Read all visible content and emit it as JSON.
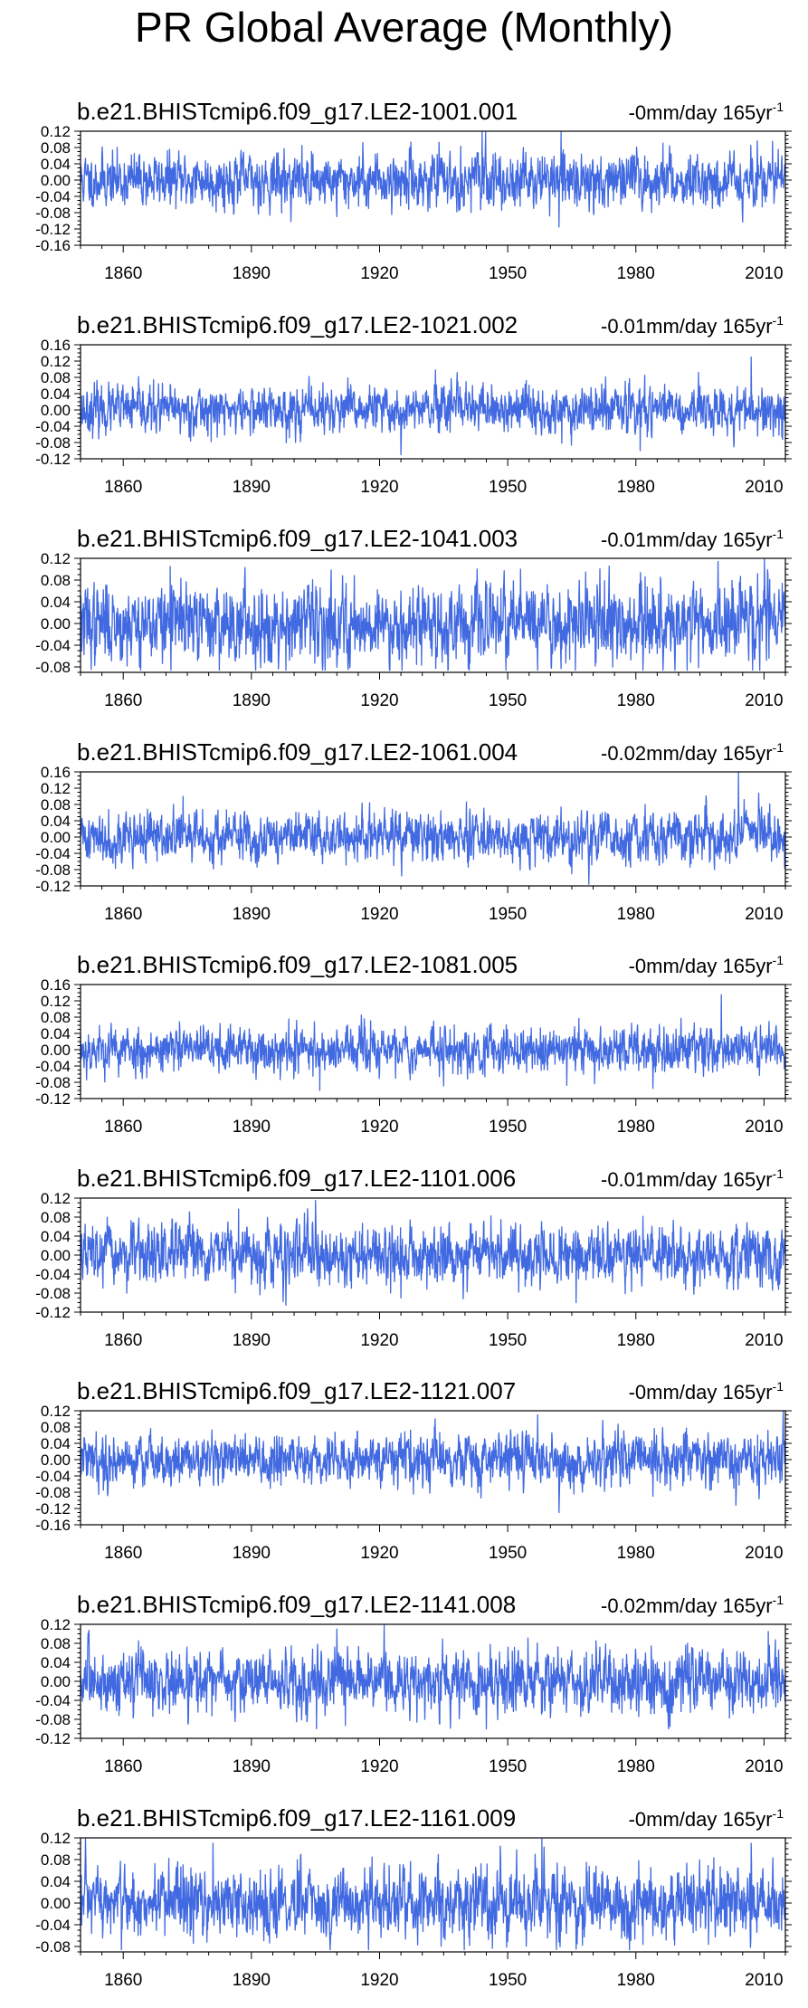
{
  "title": "PR Global Average (Monthly)",
  "trend_unit": "mm/day 165yr",
  "trend_exponent": "-1",
  "chart_data": [
    {
      "type": "line",
      "title": "b.e21.BHISTcmip6.f09_g17.LE2-1001.001",
      "trend": "-0",
      "xlim": [
        1850,
        2015
      ],
      "ylim": [
        -0.16,
        0.12
      ],
      "xticks": [
        1860,
        1890,
        1920,
        1950,
        1980,
        2010
      ],
      "xtick_labels": [
        "1860",
        "1890",
        "1920",
        "1950",
        "1980",
        "2010"
      ],
      "yticks": [
        -0.16,
        -0.12,
        -0.08,
        -0.04,
        0.0,
        0.04,
        0.08,
        0.12
      ],
      "ytick_labels": [
        "-0.16",
        "-0.12",
        "-0.08",
        "-0.04",
        "0.00",
        "0.04",
        "0.08",
        "0.12"
      ],
      "series": [
        {
          "color": "#4169e1",
          "start_year": 1850,
          "months": 1980,
          "amplitude": 0.032,
          "seed": 11,
          "features": [
            {
              "year": 1944,
              "value": 0.12
            },
            {
              "year": 1962,
              "value": -0.115
            },
            {
              "year": 1910,
              "value": -0.09
            },
            {
              "year": 2012,
              "value": 0.095
            }
          ]
        }
      ]
    },
    {
      "type": "line",
      "title": "b.e21.BHISTcmip6.f09_g17.LE2-1021.002",
      "trend": "-0.01",
      "xlim": [
        1850,
        2015
      ],
      "ylim": [
        -0.12,
        0.16
      ],
      "xticks": [
        1860,
        1890,
        1920,
        1950,
        1980,
        2010
      ],
      "xtick_labels": [
        "1860",
        "1890",
        "1920",
        "1950",
        "1980",
        "2010"
      ],
      "yticks": [
        -0.12,
        -0.08,
        -0.04,
        0.0,
        0.04,
        0.08,
        0.12,
        0.16
      ],
      "ytick_labels": [
        "-0.12",
        "-0.08",
        "-0.04",
        "0.00",
        "0.04",
        "0.08",
        "0.12",
        "0.16"
      ],
      "series": [
        {
          "color": "#4169e1",
          "start_year": 1850,
          "months": 1980,
          "amplitude": 0.028,
          "seed": 23,
          "features": [
            {
              "year": 2007,
              "value": 0.13
            },
            {
              "year": 1925,
              "value": -0.11
            },
            {
              "year": 1981,
              "value": -0.1
            }
          ]
        }
      ]
    },
    {
      "type": "line",
      "title": "b.e21.BHISTcmip6.f09_g17.LE2-1041.003",
      "trend": "-0.01",
      "xlim": [
        1850,
        2015
      ],
      "ylim": [
        -0.09,
        0.12
      ],
      "xticks": [
        1860,
        1890,
        1920,
        1950,
        1980,
        2010
      ],
      "xtick_labels": [
        "1860",
        "1890",
        "1920",
        "1950",
        "1980",
        "2010"
      ],
      "yticks": [
        -0.08,
        -0.04,
        0.0,
        0.04,
        0.08,
        0.12
      ],
      "ytick_labels": [
        "-0.08",
        "-0.04",
        "0.00",
        "0.04",
        "0.08",
        "0.12"
      ],
      "series": [
        {
          "color": "#4169e1",
          "start_year": 1850,
          "months": 1980,
          "amplitude": 0.035,
          "seed": 37,
          "features": [
            {
              "year": 1871,
              "value": 0.105
            },
            {
              "year": 1891,
              "value": -0.09
            },
            {
              "year": 1936,
              "value": -0.09
            },
            {
              "year": 1953,
              "value": 0.1
            }
          ]
        }
      ]
    },
    {
      "type": "line",
      "title": "b.e21.BHISTcmip6.f09_g17.LE2-1061.004",
      "trend": "-0.02",
      "xlim": [
        1850,
        2015
      ],
      "ylim": [
        -0.12,
        0.16
      ],
      "xticks": [
        1860,
        1890,
        1920,
        1950,
        1980,
        2010
      ],
      "xtick_labels": [
        "1860",
        "1890",
        "1920",
        "1950",
        "1980",
        "2010"
      ],
      "yticks": [
        -0.12,
        -0.08,
        -0.04,
        0.0,
        0.04,
        0.08,
        0.12,
        0.16
      ],
      "ytick_labels": [
        "-0.12",
        "-0.08",
        "-0.04",
        "0.00",
        "0.04",
        "0.08",
        "0.12",
        "0.16"
      ],
      "series": [
        {
          "color": "#4169e1",
          "start_year": 1850,
          "months": 1980,
          "amplitude": 0.03,
          "seed": 41,
          "features": [
            {
              "year": 2004,
              "value": 0.16
            },
            {
              "year": 1969,
              "value": -0.12
            },
            {
              "year": 1965,
              "value": -0.09
            },
            {
              "year": 1874,
              "value": 0.1
            }
          ]
        }
      ]
    },
    {
      "type": "line",
      "title": "b.e21.BHISTcmip6.f09_g17.LE2-1081.005",
      "trend": "-0",
      "xlim": [
        1850,
        2015
      ],
      "ylim": [
        -0.12,
        0.16
      ],
      "xticks": [
        1860,
        1890,
        1920,
        1950,
        1980,
        2010
      ],
      "xtick_labels": [
        "1860",
        "1890",
        "1920",
        "1950",
        "1980",
        "2010"
      ],
      "yticks": [
        -0.12,
        -0.08,
        -0.04,
        0.0,
        0.04,
        0.08,
        0.12,
        0.16
      ],
      "ytick_labels": [
        "-0.12",
        "-0.08",
        "-0.04",
        "0.00",
        "0.04",
        "0.08",
        "0.12",
        "0.16"
      ],
      "series": [
        {
          "color": "#4169e1",
          "start_year": 1850,
          "months": 1980,
          "amplitude": 0.028,
          "seed": 53,
          "features": [
            {
              "year": 2000,
              "value": 0.135
            },
            {
              "year": 1906,
              "value": -0.1
            },
            {
              "year": 1984,
              "value": -0.095
            }
          ]
        }
      ]
    },
    {
      "type": "line",
      "title": "b.e21.BHISTcmip6.f09_g17.LE2-1101.006",
      "trend": "-0.01",
      "xlim": [
        1850,
        2015
      ],
      "ylim": [
        -0.12,
        0.12
      ],
      "xticks": [
        1860,
        1890,
        1920,
        1950,
        1980,
        2010
      ],
      "xtick_labels": [
        "1860",
        "1890",
        "1920",
        "1950",
        "1980",
        "2010"
      ],
      "yticks": [
        -0.12,
        -0.08,
        -0.04,
        0.0,
        0.04,
        0.08,
        0.12
      ],
      "ytick_labels": [
        "-0.12",
        "-0.08",
        "-0.04",
        "0.00",
        "0.04",
        "0.08",
        "0.12"
      ],
      "series": [
        {
          "color": "#4169e1",
          "start_year": 1850,
          "months": 1980,
          "amplitude": 0.03,
          "seed": 67,
          "features": [
            {
              "year": 1905,
              "value": 0.115
            },
            {
              "year": 1966,
              "value": -0.1
            },
            {
              "year": 1925,
              "value": -0.09
            }
          ]
        }
      ]
    },
    {
      "type": "line",
      "title": "b.e21.BHISTcmip6.f09_g17.LE2-1121.007",
      "trend": "-0",
      "xlim": [
        1850,
        2015
      ],
      "ylim": [
        -0.16,
        0.12
      ],
      "xticks": [
        1860,
        1890,
        1920,
        1950,
        1980,
        2010
      ],
      "xtick_labels": [
        "1860",
        "1890",
        "1920",
        "1950",
        "1980",
        "2010"
      ],
      "yticks": [
        -0.16,
        -0.12,
        -0.08,
        -0.04,
        0.0,
        0.04,
        0.08,
        0.12
      ],
      "ytick_labels": [
        "-0.16",
        "-0.12",
        "-0.08",
        "-0.04",
        "0.00",
        "0.04",
        "0.08",
        "0.12"
      ],
      "series": [
        {
          "color": "#4169e1",
          "start_year": 1850,
          "months": 1980,
          "amplitude": 0.03,
          "seed": 79,
          "features": [
            {
              "year": 1957,
              "value": 0.11
            },
            {
              "year": 1962,
              "value": -0.13
            },
            {
              "year": 1933,
              "value": 0.1
            },
            {
              "year": 1984,
              "value": -0.09
            }
          ]
        }
      ]
    },
    {
      "type": "line",
      "title": "b.e21.BHISTcmip6.f09_g17.LE2-1141.008",
      "trend": "-0.02",
      "xlim": [
        1850,
        2015
      ],
      "ylim": [
        -0.12,
        0.12
      ],
      "xticks": [
        1860,
        1890,
        1920,
        1950,
        1980,
        2010
      ],
      "xtick_labels": [
        "1860",
        "1890",
        "1920",
        "1950",
        "1980",
        "2010"
      ],
      "yticks": [
        -0.12,
        -0.08,
        -0.04,
        0.0,
        0.04,
        0.08,
        0.12
      ],
      "ytick_labels": [
        "-0.12",
        "-0.08",
        "-0.04",
        "0.00",
        "0.04",
        "0.08",
        "0.12"
      ],
      "series": [
        {
          "color": "#4169e1",
          "start_year": 1850,
          "months": 1980,
          "amplitude": 0.032,
          "seed": 83,
          "features": [
            {
              "year": 1910,
              "value": 0.11
            },
            {
              "year": 2011,
              "value": 0.105
            },
            {
              "year": 1945,
              "value": -0.1
            },
            {
              "year": 1988,
              "value": -0.095
            }
          ]
        }
      ]
    },
    {
      "type": "line",
      "title": "b.e21.BHISTcmip6.f09_g17.LE2-1161.009",
      "trend": "-0",
      "xlim": [
        1850,
        2015
      ],
      "ylim": [
        -0.09,
        0.12
      ],
      "xticks": [
        1860,
        1890,
        1920,
        1950,
        1980,
        2010
      ],
      "xtick_labels": [
        "1860",
        "1890",
        "1920",
        "1950",
        "1980",
        "2010"
      ],
      "yticks": [
        -0.08,
        -0.04,
        0.0,
        0.04,
        0.08,
        0.12
      ],
      "ytick_labels": [
        "-0.08",
        "-0.04",
        "0.00",
        "0.04",
        "0.08",
        "0.12"
      ],
      "series": [
        {
          "color": "#4169e1",
          "start_year": 1850,
          "months": 1980,
          "amplitude": 0.032,
          "seed": 97,
          "features": [
            {
              "year": 1958,
              "value": 0.12
            },
            {
              "year": 2007,
              "value": 0.11
            },
            {
              "year": 1881,
              "value": 0.11
            },
            {
              "year": 1966,
              "value": -0.085
            }
          ]
        }
      ]
    }
  ]
}
